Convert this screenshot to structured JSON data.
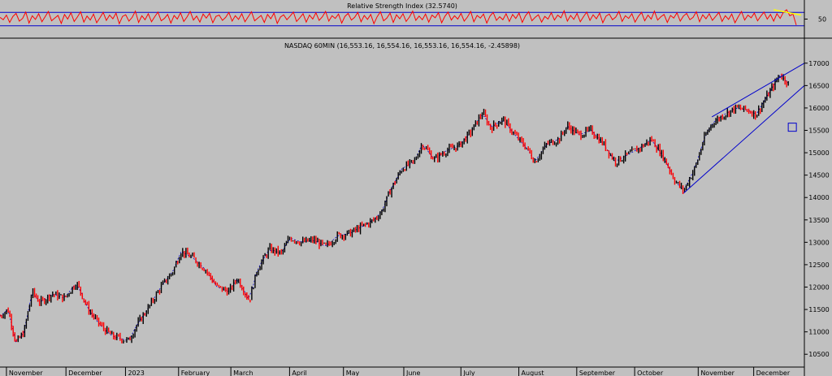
{
  "chart_data": [
    {
      "type": "line",
      "title": "Relative Strength Index (32.5740)",
      "y_ticks": [
        "50"
      ],
      "guide_levels": [
        70,
        30
      ],
      "ylim": [
        0,
        100
      ],
      "series": [
        {
          "values": [
            55,
            48,
            62,
            40,
            58,
            67,
            44,
            52,
            71,
            38,
            60,
            49,
            66,
            42,
            57,
            73,
            45,
            53,
            61,
            37,
            64,
            50,
            69,
            43,
            56,
            72,
            41,
            59,
            47,
            65,
            39,
            54,
            70,
            46,
            62,
            51,
            68,
            36,
            58,
            63,
            44,
            55,
            74,
            40,
            60,
            48,
            66,
            42,
            57,
            71,
            45,
            52,
            64,
            38,
            61,
            50,
            69,
            43,
            56,
            73,
            47,
            59,
            41,
            65,
            53,
            67,
            39,
            58,
            62,
            46,
            55,
            70,
            44,
            60,
            49,
            66,
            42,
            57,
            72,
            45,
            53,
            61,
            40,
            64,
            51,
            68,
            37,
            56,
            63,
            48,
            59,
            71,
            43,
            54,
            66,
            41,
            62,
            50,
            69,
            46,
            57,
            73,
            44,
            60,
            52,
            65,
            38,
            58,
            67,
            47,
            55,
            70,
            42,
            61,
            49,
            64,
            36,
            57,
            72,
            45,
            53,
            68,
            40,
            63,
            51,
            66,
            43,
            56,
            74,
            46,
            59,
            48,
            65,
            41,
            62,
            54,
            69,
            39,
            58,
            71,
            47,
            60,
            50,
            67,
            44,
            56,
            73,
            42,
            61,
            53,
            65,
            38,
            59,
            70,
            46,
            57,
            48,
            66,
            43,
            64,
            52,
            68,
            40,
            60,
            72,
            45,
            55,
            63,
            41,
            58,
            50,
            69,
            47,
            62,
            54,
            75,
            44,
            61,
            49,
            67,
            42,
            57,
            71,
            46,
            63,
            51,
            68,
            39,
            59,
            65,
            48,
            56,
            73,
            43,
            60,
            52,
            66,
            41,
            58,
            70,
            45,
            62,
            50,
            74,
            47,
            57,
            64,
            40,
            61,
            53,
            69,
            44,
            59,
            67,
            48,
            55,
            72,
            42,
            63,
            51,
            66,
            46,
            58,
            70,
            43,
            60,
            49,
            65,
            39,
            57,
            73,
            47,
            62,
            54,
            68,
            45,
            59,
            71,
            50,
            64,
            44,
            66,
            52,
            70,
            78,
            60,
            65,
            32
          ]
        }
      ],
      "colors": {
        "rsi_line": "#ff0000",
        "guide_lines": "#0000cc",
        "trend_segment": "#ffff00"
      }
    },
    {
      "type": "line",
      "title": "NASDAQ 60MIN (16,553.16, 16,554.16, 16,553.16, 16,554.16, -2.45898)",
      "xlabel": "",
      "ylabel": "",
      "ylim": [
        10250,
        17250
      ],
      "y_ticks": [
        "10500",
        "11000",
        "11500",
        "12000",
        "12500",
        "13000",
        "13500",
        "14000",
        "14500",
        "15000",
        "15500",
        "16000",
        "16500",
        "17000"
      ],
      "x_ticks": [
        {
          "label": "November",
          "t": 0.008
        },
        {
          "label": "December",
          "t": 0.082
        },
        {
          "label": "2023",
          "t": 0.156
        },
        {
          "label": "February",
          "t": 0.222
        },
        {
          "label": "March",
          "t": 0.287
        },
        {
          "label": "April",
          "t": 0.36
        },
        {
          "label": "May",
          "t": 0.427
        },
        {
          "label": "June",
          "t": 0.502
        },
        {
          "label": "July",
          "t": 0.573
        },
        {
          "label": "August",
          "t": 0.645
        },
        {
          "label": "September",
          "t": 0.717
        },
        {
          "label": "October",
          "t": 0.789
        },
        {
          "label": "November",
          "t": 0.868
        },
        {
          "label": "December",
          "t": 0.937
        }
      ],
      "series": [
        {
          "name": "",
          "points": [
            [
              0.0,
              11350
            ],
            [
              0.01,
              11500
            ],
            [
              0.02,
              10750
            ],
            [
              0.03,
              11000
            ],
            [
              0.04,
              11900
            ],
            [
              0.05,
              11650
            ],
            [
              0.065,
              11850
            ],
            [
              0.08,
              11750
            ],
            [
              0.095,
              12100
            ],
            [
              0.11,
              11500
            ],
            [
              0.12,
              11250
            ],
            [
              0.13,
              11050
            ],
            [
              0.14,
              10900
            ],
            [
              0.15,
              10850
            ],
            [
              0.16,
              10800
            ],
            [
              0.17,
              11150
            ],
            [
              0.185,
              11550
            ],
            [
              0.2,
              12000
            ],
            [
              0.215,
              12350
            ],
            [
              0.225,
              12800
            ],
            [
              0.24,
              12650
            ],
            [
              0.255,
              12400
            ],
            [
              0.27,
              12000
            ],
            [
              0.285,
              11900
            ],
            [
              0.295,
              12200
            ],
            [
              0.31,
              11700
            ],
            [
              0.32,
              12400
            ],
            [
              0.335,
              12850
            ],
            [
              0.35,
              12750
            ],
            [
              0.36,
              13100
            ],
            [
              0.375,
              13000
            ],
            [
              0.39,
              13050
            ],
            [
              0.405,
              12900
            ],
            [
              0.42,
              13150
            ],
            [
              0.435,
              13200
            ],
            [
              0.45,
              13350
            ],
            [
              0.465,
              13500
            ],
            [
              0.475,
              13700
            ],
            [
              0.485,
              14150
            ],
            [
              0.5,
              14650
            ],
            [
              0.515,
              14800
            ],
            [
              0.525,
              15200
            ],
            [
              0.54,
              14850
            ],
            [
              0.555,
              15050
            ],
            [
              0.57,
              15150
            ],
            [
              0.585,
              15450
            ],
            [
              0.6,
              15900
            ],
            [
              0.61,
              15550
            ],
            [
              0.625,
              15750
            ],
            [
              0.64,
              15400
            ],
            [
              0.655,
              15100
            ],
            [
              0.665,
              14800
            ],
            [
              0.68,
              15200
            ],
            [
              0.695,
              15300
            ],
            [
              0.705,
              15600
            ],
            [
              0.72,
              15400
            ],
            [
              0.735,
              15500
            ],
            [
              0.75,
              15200
            ],
            [
              0.765,
              14800
            ],
            [
              0.78,
              14950
            ],
            [
              0.795,
              15100
            ],
            [
              0.81,
              15300
            ],
            [
              0.825,
              14900
            ],
            [
              0.84,
              14350
            ],
            [
              0.85,
              14150
            ],
            [
              0.865,
              14700
            ],
            [
              0.875,
              15300
            ],
            [
              0.885,
              15650
            ],
            [
              0.9,
              15850
            ],
            [
              0.915,
              16000
            ],
            [
              0.93,
              15950
            ],
            [
              0.94,
              15850
            ],
            [
              0.955,
              16300
            ],
            [
              0.97,
              16750
            ],
            [
              0.98,
              16550
            ]
          ]
        }
      ],
      "annotations": [
        {
          "kind": "channel-upper",
          "from": [
            0.885,
            15800
          ],
          "to": [
            1.0,
            17000
          ]
        },
        {
          "kind": "channel-lower",
          "from": [
            0.85,
            14100
          ],
          "to": [
            1.0,
            16500
          ]
        },
        {
          "kind": "marker-square",
          "at": [
            0.985,
            15570
          ]
        }
      ],
      "colors": {
        "up_bar": "#000000",
        "down_bar": "#ff0000",
        "average_line": "#0000cc",
        "channel": "#0000cc",
        "marker": "#0000cc"
      }
    }
  ]
}
